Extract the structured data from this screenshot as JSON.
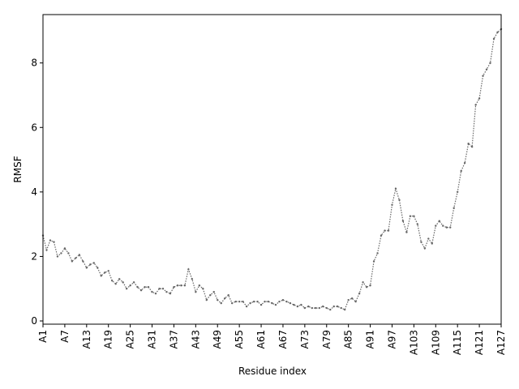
{
  "chart_data": {
    "type": "line",
    "x_label": "Residue index",
    "y_label": "RMSF",
    "categories": [
      "A1",
      null,
      null,
      null,
      null,
      null,
      "A7",
      null,
      null,
      null,
      null,
      null,
      "A13",
      null,
      null,
      null,
      null,
      null,
      "A19",
      null,
      null,
      null,
      null,
      null,
      "A25",
      null,
      null,
      null,
      null,
      null,
      "A31",
      null,
      null,
      null,
      null,
      null,
      "A37",
      null,
      null,
      null,
      null,
      null,
      "A43",
      null,
      null,
      null,
      null,
      null,
      "A49",
      null,
      null,
      null,
      null,
      null,
      "A55",
      null,
      null,
      null,
      null,
      null,
      "A61",
      null,
      null,
      null,
      null,
      null,
      "A67",
      null,
      null,
      null,
      null,
      null,
      "A73",
      null,
      null,
      null,
      null,
      null,
      "A79",
      null,
      null,
      null,
      null,
      null,
      "A85",
      null,
      null,
      null,
      null,
      null,
      "A91",
      null,
      null,
      null,
      null,
      null,
      "A97",
      null,
      null,
      null,
      null,
      null,
      "A103",
      null,
      null,
      null,
      null,
      null,
      "A109",
      null,
      null,
      null,
      null,
      null,
      "A115",
      null,
      null,
      null,
      null,
      null,
      "A121",
      null,
      null,
      null,
      null,
      null,
      "A127"
    ],
    "values": [
      2.65,
      2.2,
      2.5,
      2.45,
      2.0,
      2.1,
      2.25,
      2.1,
      1.85,
      1.95,
      2.05,
      1.85,
      1.65,
      1.75,
      1.8,
      1.65,
      1.4,
      1.5,
      1.55,
      1.25,
      1.15,
      1.3,
      1.2,
      1.0,
      1.1,
      1.2,
      1.05,
      0.95,
      1.05,
      1.05,
      0.9,
      0.85,
      1.0,
      1.0,
      0.9,
      0.85,
      1.05,
      1.1,
      1.1,
      1.1,
      1.6,
      1.3,
      0.9,
      1.1,
      1.0,
      0.65,
      0.8,
      0.9,
      0.65,
      0.55,
      0.7,
      0.8,
      0.55,
      0.6,
      0.6,
      0.6,
      0.45,
      0.55,
      0.6,
      0.6,
      0.5,
      0.6,
      0.6,
      0.55,
      0.5,
      0.6,
      0.65,
      0.6,
      0.55,
      0.5,
      0.45,
      0.5,
      0.4,
      0.45,
      0.4,
      0.4,
      0.4,
      0.45,
      0.4,
      0.35,
      0.45,
      0.45,
      0.4,
      0.35,
      0.65,
      0.7,
      0.6,
      0.85,
      1.2,
      1.05,
      1.1,
      1.85,
      2.1,
      2.65,
      2.8,
      2.8,
      3.6,
      4.1,
      3.75,
      3.1,
      2.75,
      3.25,
      3.25,
      3.0,
      2.45,
      2.25,
      2.55,
      2.4,
      2.95,
      3.1,
      2.95,
      2.9,
      2.9,
      3.5,
      4.0,
      4.65,
      4.9,
      5.5,
      5.4,
      6.7,
      6.9,
      7.6,
      7.8,
      8.0,
      8.75,
      8.95,
      9.05
    ],
    "color": "#666666",
    "ylim": [
      -0.1,
      9.5
    ],
    "yticks": [
      0,
      2,
      4,
      6,
      8
    ]
  }
}
